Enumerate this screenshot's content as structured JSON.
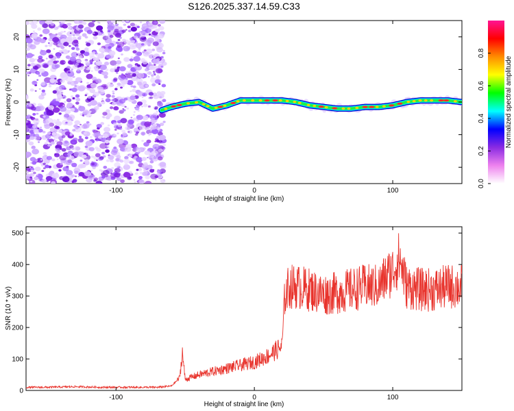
{
  "title": "S126.2025.337.14.59.C33",
  "colors": {
    "snr_line": "#e8332c",
    "noise": "#8a2be2",
    "axis": "#000000"
  },
  "chart_data": [
    {
      "type": "heatmap",
      "name": "spectrogram",
      "xlabel": "Height of straight line (km)",
      "ylabel": "Frequency (Hz)",
      "xlim": [
        -165,
        150
      ],
      "ylim": [
        -25,
        25
      ],
      "xticks": [
        -100,
        0,
        100
      ],
      "xtick_labels": [
        "-100",
        "0",
        "100"
      ],
      "yticks": [
        -20,
        -10,
        0,
        10,
        20
      ],
      "ytick_labels": [
        "-20",
        "-10",
        "0",
        "10",
        "20"
      ],
      "noise_region_x": [
        -165,
        -67
      ],
      "signal_track": {
        "x": [
          -67,
          -60,
          -50,
          -40,
          -30,
          -20,
          -10,
          0,
          10,
          20,
          30,
          40,
          50,
          60,
          70,
          80,
          90,
          100,
          110,
          120,
          130,
          140,
          150
        ],
        "freq_hz": [
          -2.5,
          -1.5,
          -0.5,
          0,
          -2,
          -1,
          0.5,
          0.5,
          0.5,
          0.5,
          0,
          -1,
          -1.5,
          -2,
          -2,
          -1.5,
          -1.5,
          -1,
          0,
          0.5,
          0.5,
          0.5,
          0
        ]
      }
    },
    {
      "type": "colorbar",
      "name": "colorbar",
      "label": "Normalized spectral amplitude",
      "range": [
        0,
        1
      ],
      "ticks": [
        0,
        0.2,
        0.4,
        0.6,
        0.8
      ],
      "tick_labels": [
        "0.0",
        "0.2",
        "0.4",
        "0.6",
        "0.8"
      ],
      "colormap_stops": [
        "#ffffff",
        "#ee82ee",
        "#8a2be2",
        "#0000ff",
        "#00ffff",
        "#00ff00",
        "#ffff00",
        "#ff8c00",
        "#ff0000",
        "#ff1493"
      ]
    },
    {
      "type": "line",
      "name": "snr",
      "xlabel": "Height of straight line (km)",
      "ylabel": "SNR (10 * v/v)",
      "xlim": [
        -165,
        150
      ],
      "ylim": [
        0,
        520
      ],
      "xticks": [
        -100,
        0,
        100
      ],
      "xtick_labels": [
        "-100",
        "0",
        "100"
      ],
      "yticks": [
        0,
        100,
        200,
        300,
        400,
        500
      ],
      "ytick_labels": [
        "0",
        "100",
        "200",
        "300",
        "400",
        "500"
      ],
      "series": [
        {
          "name": "SNR",
          "x": [
            -165,
            -150,
            -130,
            -110,
            -90,
            -70,
            -60,
            -54,
            -52,
            -50,
            -40,
            -30,
            -20,
            -10,
            0,
            10,
            20,
            22,
            25,
            30,
            40,
            50,
            60,
            70,
            80,
            90,
            95,
            100,
            105,
            110,
            120,
            130,
            140,
            150
          ],
          "y": [
            10,
            10,
            12,
            10,
            10,
            10,
            14,
            40,
            120,
            35,
            50,
            60,
            70,
            80,
            90,
            110,
            140,
            300,
            330,
            330,
            320,
            305,
            310,
            320,
            330,
            330,
            360,
            380,
            420,
            330,
            320,
            320,
            330,
            330
          ]
        }
      ]
    }
  ]
}
